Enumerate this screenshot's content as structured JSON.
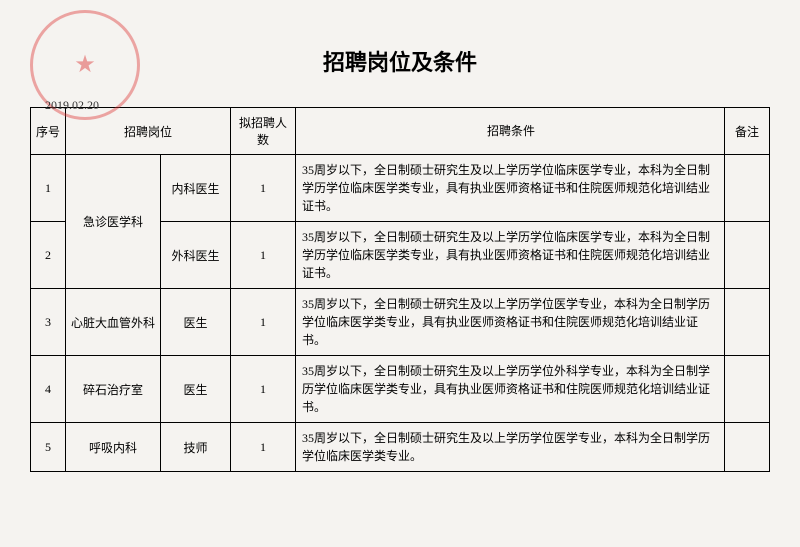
{
  "stamp": {
    "date": "2019.02.20",
    "star": "★"
  },
  "title": "招聘岗位及条件",
  "headers": {
    "seq": "序号",
    "position": "招聘岗位",
    "count": "拟招聘人数",
    "requirements": "招聘条件",
    "note": "备注"
  },
  "rows": [
    {
      "seq": "1",
      "dept": "急诊医学科",
      "dept_rowspan": 2,
      "pos": "内科医生",
      "count": "1",
      "req": "35周岁以下，全日制硕士研究生及以上学历学位临床医学专业，本科为全日制学历学位临床医学类专业，具有执业医师资格证书和住院医师规范化培训结业证书。",
      "note": ""
    },
    {
      "seq": "2",
      "dept": "",
      "pos": "外科医生",
      "count": "1",
      "req": "35周岁以下，全日制硕士研究生及以上学历学位临床医学专业，本科为全日制学历学位临床医学类专业，具有执业医师资格证书和住院医师规范化培训结业证书。",
      "note": ""
    },
    {
      "seq": "3",
      "dept": "心脏大血管外科",
      "pos": "医生",
      "count": "1",
      "req": "35周岁以下，全日制硕士研究生及以上学历学位医学专业，本科为全日制学历学位临床医学类专业，具有执业医师资格证书和住院医师规范化培训结业证书。",
      "note": ""
    },
    {
      "seq": "4",
      "dept": "碎石治疗室",
      "pos": "医生",
      "count": "1",
      "req": "35周岁以下，全日制硕士研究生及以上学历学位外科学专业，本科为全日制学历学位临床医学类专业，具有执业医师资格证书和住院医师规范化培训结业证书。",
      "note": ""
    },
    {
      "seq": "5",
      "dept": "呼吸内科",
      "pos": "技师",
      "count": "1",
      "req": "35周岁以下，全日制硕士研究生及以上学历学位医学专业，本科为全日制学历学位临床医学类专业。",
      "note": ""
    }
  ]
}
